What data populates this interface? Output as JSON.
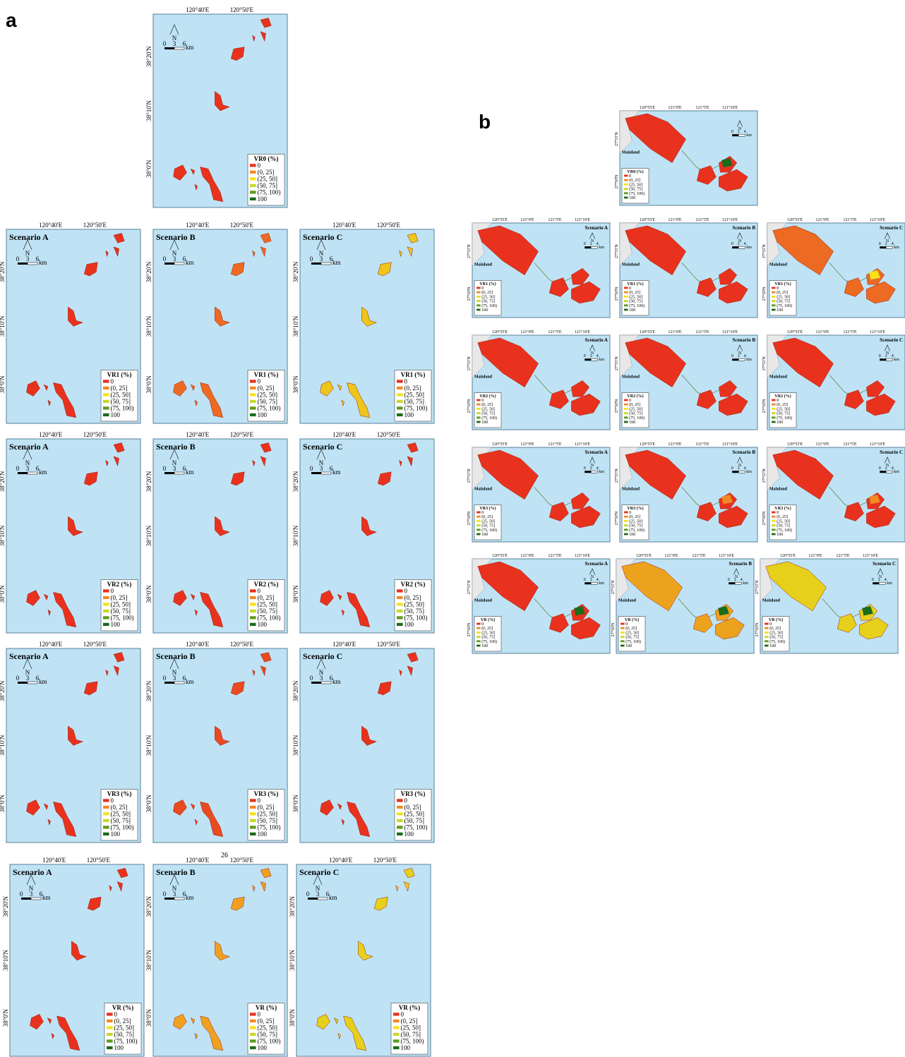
{
  "figure_a": {
    "label": "a",
    "lon_labels": [
      "120°40'E",
      "120°50'E"
    ],
    "lat_labels": [
      "38°20'N",
      "38°10'N",
      "38°0'N"
    ],
    "scale": [
      "0",
      "3",
      "6",
      "km"
    ],
    "north": "N",
    "legend_items": [
      "0",
      "(0, 25]",
      "(25, 50]",
      "(50, 75]",
      "(75, 100)",
      "100"
    ],
    "legend_colors": [
      "#e8321e",
      "#f08a24",
      "#f5e21a",
      "#c8d92a",
      "#5e9a1e",
      "#1a6b1a"
    ],
    "panels": [
      {
        "legend_title": "VR0 (%)",
        "color": "#e8321e"
      },
      {
        "scenario": "Scenario A",
        "legend_title": "VR1 (%)",
        "color": "#e8321e"
      },
      {
        "scenario": "Scenario B",
        "legend_title": "VR1 (%)",
        "color": "#ec6a22"
      },
      {
        "scenario": "Scenario C",
        "legend_title": "VR1 (%)",
        "color": "#eec51c"
      },
      {
        "scenario": "Scenario A",
        "legend_title": "VR2 (%)",
        "color": "#e8321e"
      },
      {
        "scenario": "Scenario B",
        "legend_title": "VR2 (%)",
        "color": "#e8321e"
      },
      {
        "scenario": "Scenario C",
        "legend_title": "VR2 (%)",
        "color": "#e8321e"
      },
      {
        "scenario": "Scenario A",
        "legend_title": "VR3 (%)",
        "color": "#e8321e"
      },
      {
        "scenario": "Scenario B",
        "legend_title": "VR3 (%)",
        "color": "#e94a20"
      },
      {
        "scenario": "Scenario C",
        "legend_title": "VR3 (%)",
        "color": "#e8321e"
      },
      {
        "scenario": "Scenario A",
        "legend_title": "VR (%)",
        "color": "#e8321e"
      },
      {
        "scenario": "Scenario B",
        "legend_title": "VR (%)",
        "color": "#f0a020"
      },
      {
        "scenario": "Scenario C",
        "legend_title": "VR (%)",
        "color": "#e6d01c"
      }
    ]
  },
  "page_number": "26",
  "figure_b": {
    "label": "b",
    "lon_labels": [
      "120°55'E",
      "121°0'E",
      "121°5'E",
      "121°10'E"
    ],
    "lat_labels": [
      "27°55'N",
      "27°50'N"
    ],
    "scale": [
      "0",
      "2",
      "4",
      "km"
    ],
    "north": "N",
    "mainland": "Mainland",
    "legend_items": [
      "0",
      "(0, 25]",
      "(25, 50]",
      "(50, 75]",
      "(75, 100)",
      "100"
    ],
    "legend_colors": [
      "#e8321e",
      "#f08a24",
      "#f5e21a",
      "#c8d92a",
      "#5e9a1e",
      "#1a6b1a"
    ],
    "panels": [
      {
        "legend_title": "VR0 (%)",
        "color": "#e8321e",
        "accent": "#1a6b1a"
      },
      {
        "scenario": "Scenario A",
        "legend_title": "VR1 (%)",
        "color": "#e8321e"
      },
      {
        "scenario": "Scenario B",
        "legend_title": "VR1 (%)",
        "color": "#e8321e"
      },
      {
        "scenario": "Scenario C",
        "legend_title": "VR1 (%)",
        "color": "#ec6a22",
        "accent": "#f5e21a"
      },
      {
        "scenario": "Scenario A",
        "legend_title": "VR2 (%)",
        "color": "#e8321e"
      },
      {
        "scenario": "Scenario B",
        "legend_title": "VR2 (%)",
        "color": "#e8321e"
      },
      {
        "scenario": "Scenario C",
        "legend_title": "VR2 (%)",
        "color": "#e8321e"
      },
      {
        "scenario": "Scenario A",
        "legend_title": "VR3 (%)",
        "color": "#e8321e"
      },
      {
        "scenario": "Scenario B",
        "legend_title": "VR3 (%)",
        "color": "#e8321e",
        "accent": "#f08a24"
      },
      {
        "scenario": "Scenario C",
        "legend_title": "VR3 (%)",
        "color": "#e8321e",
        "accent": "#f08a24"
      },
      {
        "scenario": "Scenario A",
        "legend_title": "VR (%)",
        "color": "#e8321e",
        "accent": "#1a6b1a"
      },
      {
        "scenario": "Scenario B",
        "legend_title": "VR (%)",
        "color": "#eda21e",
        "accent": "#1a6b1a"
      },
      {
        "scenario": "Scenario C",
        "legend_title": "VR (%)",
        "color": "#e6d01c",
        "accent": "#1a6b1a"
      }
    ]
  }
}
